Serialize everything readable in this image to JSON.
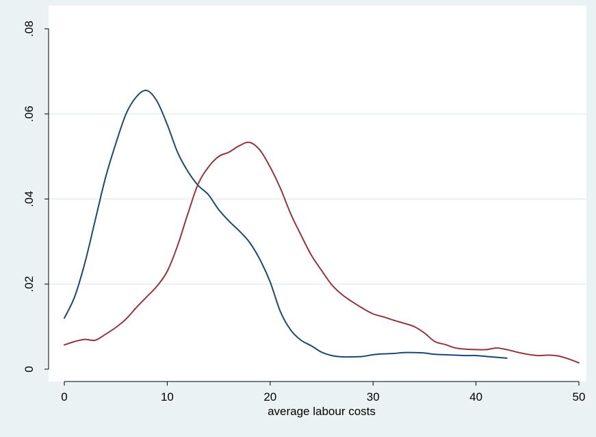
{
  "chart_data": {
    "type": "line",
    "title": "",
    "xlabel": "average labour costs",
    "ylabel": "",
    "xlim": [
      -1,
      51
    ],
    "ylim": [
      0,
      0.08
    ],
    "x_ticks": [
      0,
      10,
      20,
      30,
      40,
      50
    ],
    "x_tick_labels": [
      "0",
      "10",
      "20",
      "30",
      "40",
      "50"
    ],
    "y_ticks": [
      0,
      0.02,
      0.04,
      0.06,
      0.08
    ],
    "y_tick_labels": [
      "0",
      ".02",
      ".04",
      ".06",
      ".08"
    ],
    "grid": true,
    "legend": "none",
    "colors": {
      "background": "#eaf2f3",
      "plot_area": "#ffffff",
      "grid": "#e6eef0",
      "series_1": "#1a476f",
      "series_2": "#90353b"
    },
    "series": [
      {
        "color": "#1a476f",
        "x": [
          0,
          1,
          2,
          3,
          4,
          5,
          6,
          7,
          8,
          9,
          10,
          11,
          12,
          13,
          14,
          15,
          16,
          17,
          18,
          19,
          20,
          21,
          22,
          23,
          24,
          25,
          26,
          27,
          28,
          29,
          30,
          31,
          32,
          33,
          34,
          35,
          36,
          37,
          38,
          39,
          40,
          41,
          42,
          43
        ],
        "values": [
          0.012,
          0.017,
          0.025,
          0.035,
          0.045,
          0.053,
          0.06,
          0.064,
          0.0655,
          0.063,
          0.0575,
          0.051,
          0.0465,
          0.0432,
          0.041,
          0.0375,
          0.0348,
          0.0325,
          0.0298,
          0.0258,
          0.0205,
          0.0135,
          0.0092,
          0.0068,
          0.0055,
          0.004,
          0.0032,
          0.0029,
          0.0029,
          0.003,
          0.0034,
          0.0036,
          0.0037,
          0.0039,
          0.0039,
          0.0038,
          0.0035,
          0.0034,
          0.0033,
          0.0032,
          0.0032,
          0.003,
          0.0028,
          0.0026
        ]
      },
      {
        "color": "#90353b",
        "x": [
          0,
          1,
          2,
          3,
          4,
          5,
          6,
          7,
          8,
          9,
          10,
          11,
          12,
          13,
          14,
          15,
          16,
          17,
          18,
          19,
          20,
          21,
          22,
          23,
          24,
          25,
          26,
          27,
          28,
          29,
          30,
          31,
          32,
          33,
          34,
          35,
          36,
          37,
          38,
          39,
          40,
          41,
          42,
          43,
          44,
          45,
          46,
          47,
          48,
          49,
          50
        ],
        "values": [
          0.0057,
          0.0065,
          0.007,
          0.0068,
          0.0082,
          0.0098,
          0.0118,
          0.0145,
          0.017,
          0.0195,
          0.023,
          0.029,
          0.0365,
          0.0435,
          0.0475,
          0.05,
          0.051,
          0.0525,
          0.0533,
          0.0515,
          0.0475,
          0.0425,
          0.0365,
          0.0315,
          0.0268,
          0.0232,
          0.0198,
          0.0175,
          0.0158,
          0.0143,
          0.013,
          0.0123,
          0.0115,
          0.0108,
          0.01,
          0.0085,
          0.0065,
          0.0058,
          0.005,
          0.0047,
          0.0046,
          0.0046,
          0.005,
          0.0046,
          0.004,
          0.0035,
          0.0032,
          0.0033,
          0.0031,
          0.0024,
          0.0015
        ]
      }
    ]
  }
}
